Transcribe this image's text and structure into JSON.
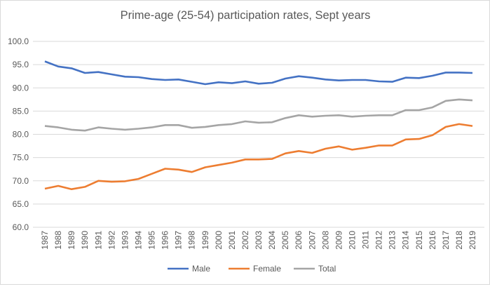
{
  "chart_data": {
    "type": "line",
    "title": "Prime-age (25-54) participation rates, Sept years",
    "xlabel": "",
    "ylabel": "",
    "ylim": [
      60,
      100
    ],
    "yticks": [
      "60.0",
      "65.0",
      "70.0",
      "75.0",
      "80.0",
      "85.0",
      "90.0",
      "95.0",
      "100.0"
    ],
    "grid": true,
    "legend_position": "bottom",
    "x": [
      "1987",
      "1988",
      "1989",
      "1990",
      "1991",
      "1992",
      "1993",
      "1994",
      "1995",
      "1996",
      "1997",
      "1998",
      "1999",
      "2000",
      "2001",
      "2002",
      "2003",
      "2004",
      "2005",
      "2006",
      "2007",
      "2008",
      "2009",
      "2010",
      "2011",
      "2012",
      "2013",
      "2014",
      "2015",
      "2016",
      "2017",
      "2018",
      "2019"
    ],
    "series": [
      {
        "name": "Male",
        "color": "#4472c4",
        "values": [
          95.7,
          94.6,
          94.2,
          93.2,
          93.4,
          92.9,
          92.4,
          92.3,
          91.9,
          91.7,
          91.8,
          91.3,
          90.8,
          91.2,
          91.0,
          91.4,
          90.9,
          91.1,
          92.0,
          92.5,
          92.2,
          91.8,
          91.6,
          91.7,
          91.7,
          91.4,
          91.3,
          92.2,
          92.1,
          92.6,
          93.3,
          93.3,
          93.2
        ]
      },
      {
        "name": "Female",
        "color": "#ed7d31",
        "values": [
          68.3,
          68.9,
          68.2,
          68.7,
          70.0,
          69.8,
          69.9,
          70.4,
          71.5,
          72.6,
          72.4,
          71.9,
          72.9,
          73.4,
          73.9,
          74.6,
          74.6,
          74.7,
          75.9,
          76.4,
          76.0,
          76.9,
          77.4,
          76.7,
          77.1,
          77.6,
          77.6,
          78.9,
          79.0,
          79.8,
          81.6,
          82.2,
          81.8
        ]
      },
      {
        "name": "Total",
        "color": "#a5a5a5",
        "values": [
          81.8,
          81.5,
          81.0,
          80.8,
          81.5,
          81.2,
          81.0,
          81.2,
          81.5,
          82.0,
          82.0,
          81.4,
          81.6,
          82.0,
          82.2,
          82.8,
          82.5,
          82.6,
          83.5,
          84.1,
          83.8,
          84.0,
          84.1,
          83.8,
          84.0,
          84.1,
          84.1,
          85.2,
          85.2,
          85.8,
          87.2,
          87.5,
          87.3
        ]
      }
    ]
  }
}
